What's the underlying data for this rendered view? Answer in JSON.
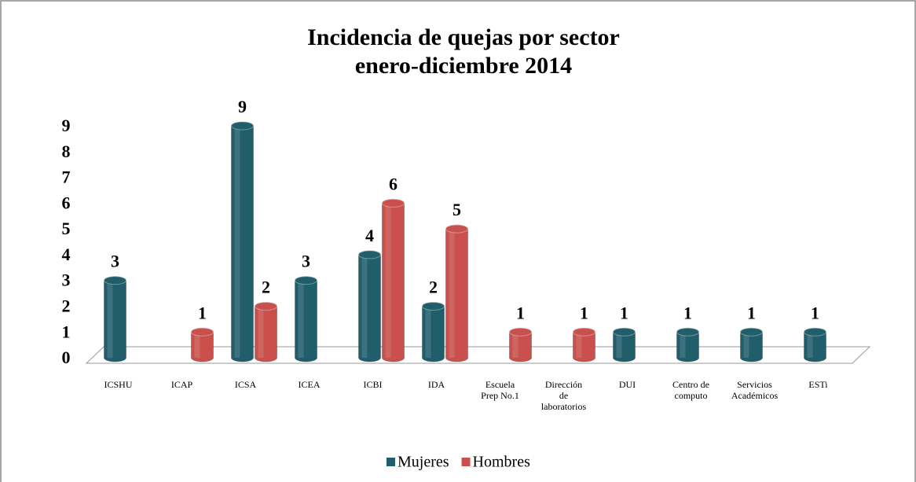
{
  "chart_data": {
    "type": "bar3d",
    "title": "Incidencia de quejas por sector",
    "subtitle": "enero-diciembre 2014",
    "categories": [
      "ICSHU",
      "ICAP",
      "ICSA",
      "ICEA",
      "ICBI",
      "IDA",
      "Escuela Prep No.1",
      "Dirección de laboratorios",
      "DUI",
      "Centro de computo",
      "Servicios Académicos",
      "ESTi"
    ],
    "series": [
      {
        "name": "Mujeres",
        "color": "#215e6b",
        "values": [
          3,
          null,
          9,
          3,
          4,
          2,
          null,
          null,
          1,
          1,
          1,
          1
        ]
      },
      {
        "name": "Hombres",
        "color": "#c9504c",
        "values": [
          null,
          1,
          2,
          null,
          6,
          5,
          1,
          1,
          null,
          null,
          null,
          null
        ]
      }
    ],
    "ylim": [
      0,
      9
    ],
    "yticks": [
      0,
      1,
      2,
      3,
      4,
      5,
      6,
      7,
      8,
      9
    ],
    "legend": "bottom"
  }
}
